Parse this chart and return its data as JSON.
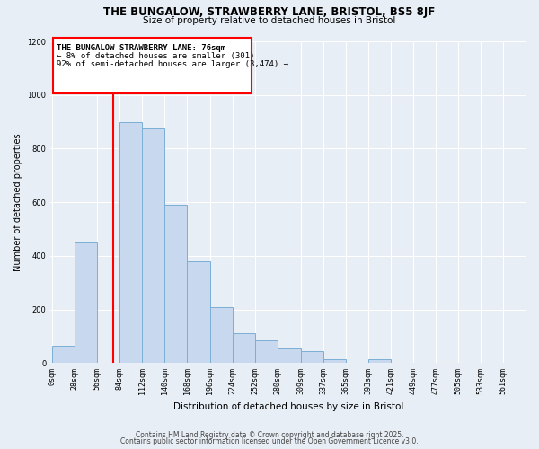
{
  "title1": "THE BUNGALOW, STRAWBERRY LANE, BRISTOL, BS5 8JF",
  "title2": "Size of property relative to detached houses in Bristol",
  "xlabel": "Distribution of detached houses by size in Bristol",
  "ylabel": "Number of detached properties",
  "bar_labels": [
    "0sqm",
    "28sqm",
    "56sqm",
    "84sqm",
    "112sqm",
    "140sqm",
    "168sqm",
    "196sqm",
    "224sqm",
    "252sqm",
    "280sqm",
    "309sqm",
    "337sqm",
    "365sqm",
    "393sqm",
    "421sqm",
    "449sqm",
    "477sqm",
    "505sqm",
    "533sqm",
    "561sqm"
  ],
  "bar_values": [
    65,
    450,
    0,
    900,
    875,
    590,
    380,
    210,
    110,
    85,
    55,
    45,
    15,
    0,
    15,
    0,
    0,
    0,
    0,
    0,
    0
  ],
  "bar_color": "#c8d8ee",
  "bar_edge_color": "#7bafd4",
  "vline_color": "red",
  "annotation_title": "THE BUNGALOW STRAWBERRY LANE: 76sqm",
  "annotation_line1": "← 8% of detached houses are smaller (301)",
  "annotation_line2": "92% of semi-detached houses are larger (3,474) →",
  "box_color": "red",
  "ylim": [
    0,
    1200
  ],
  "yticks": [
    0,
    200,
    400,
    600,
    800,
    1000,
    1200
  ],
  "footer1": "Contains HM Land Registry data © Crown copyright and database right 2025.",
  "footer2": "Contains public sector information licensed under the Open Government Licence v3.0.",
  "property_size": 76,
  "bin_starts": [
    0,
    28,
    56,
    84,
    112,
    140,
    168,
    196,
    224,
    252,
    280,
    309,
    337,
    365,
    393,
    421,
    449,
    477,
    505,
    533,
    561
  ],
  "bg_color": "#e8eef5",
  "grid_color": "#ffffff"
}
